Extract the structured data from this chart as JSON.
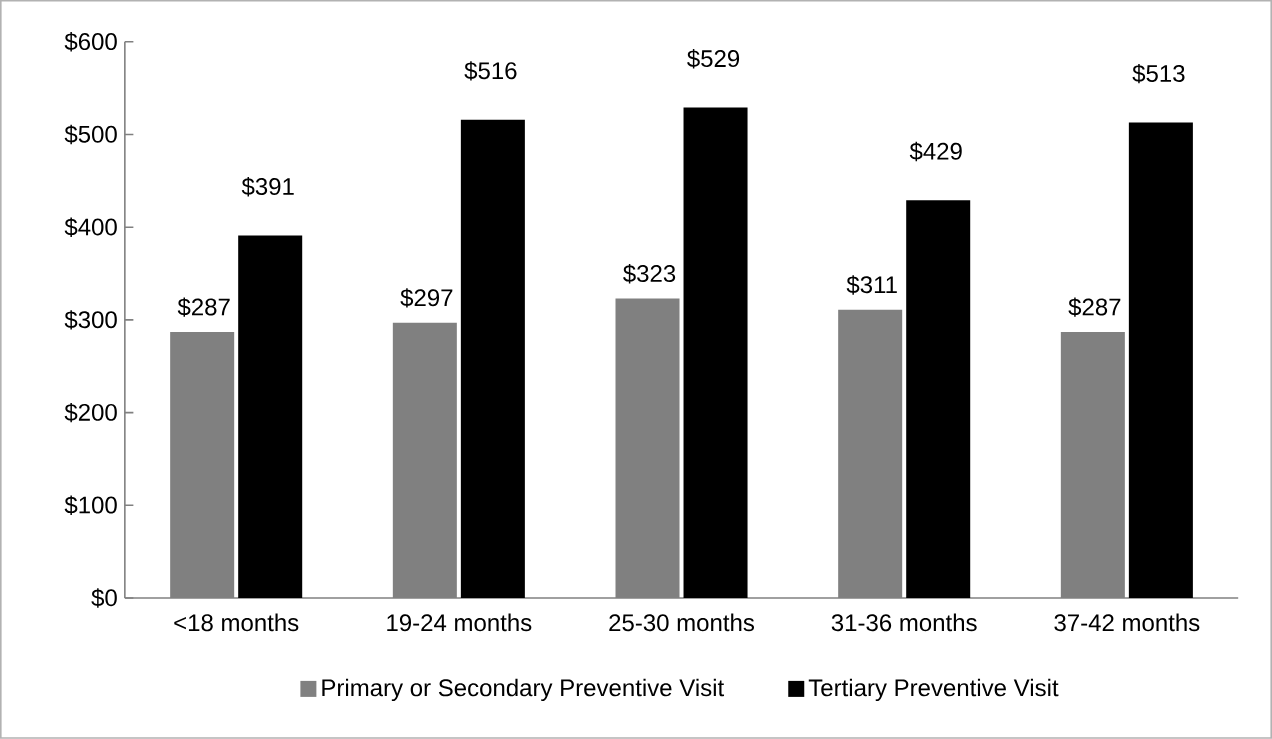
{
  "chart_data": {
    "type": "bar",
    "categories": [
      "<18 months",
      "19-24 months",
      "25-30 months",
      "31-36 months",
      "37-42 months"
    ],
    "series": [
      {
        "name": "Primary or Secondary Preventive Visit",
        "color": "#808080",
        "values": [
          287,
          297,
          323,
          311,
          287
        ],
        "value_labels": [
          "$287",
          "$297",
          "$323",
          "$311",
          "$287"
        ]
      },
      {
        "name": "Tertiary Preventive Visit",
        "color": "#000000",
        "values": [
          391,
          516,
          529,
          429,
          513
        ],
        "value_labels": [
          "$391",
          "$516",
          "$529",
          "$429",
          "$513"
        ]
      }
    ],
    "ylim": [
      0,
      600
    ],
    "yticks": [
      {
        "value": 0,
        "label": "$0"
      },
      {
        "value": 100,
        "label": "$100"
      },
      {
        "value": 200,
        "label": "$200"
      },
      {
        "value": 300,
        "label": "$300"
      },
      {
        "value": 400,
        "label": "$400"
      },
      {
        "value": 500,
        "label": "$500"
      },
      {
        "value": 600,
        "label": "$600"
      }
    ],
    "grid": false,
    "legend": "bottom"
  }
}
